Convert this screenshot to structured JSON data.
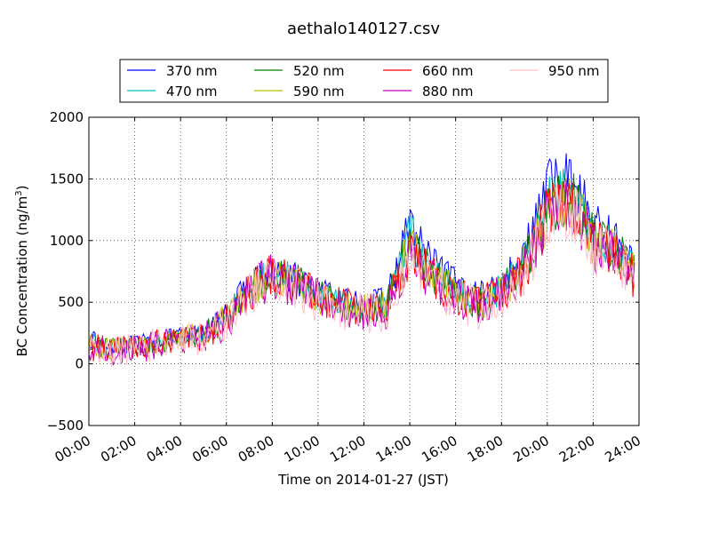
{
  "chart_data": {
    "type": "line",
    "title": "aethalo140127.csv",
    "xlabel": "Time on 2014-01-27 (JST)",
    "ylabel_main": "BC Concentration (ng/m",
    "ylabel_sup": "3",
    "ylabel_tail": ")",
    "xlim_hours": [
      0,
      24
    ],
    "ylim": [
      -500,
      2000
    ],
    "x_ticks": [
      {
        "hour": 0,
        "label": "00:00"
      },
      {
        "hour": 2,
        "label": "02:00"
      },
      {
        "hour": 4,
        "label": "04:00"
      },
      {
        "hour": 6,
        "label": "06:00"
      },
      {
        "hour": 8,
        "label": "08:00"
      },
      {
        "hour": 10,
        "label": "10:00"
      },
      {
        "hour": 12,
        "label": "12:00"
      },
      {
        "hour": 14,
        "label": "14:00"
      },
      {
        "hour": 16,
        "label": "16:00"
      },
      {
        "hour": 18,
        "label": "18:00"
      },
      {
        "hour": 20,
        "label": "20:00"
      },
      {
        "hour": 22,
        "label": "22:00"
      },
      {
        "hour": 24,
        "label": "24:00"
      }
    ],
    "y_ticks": [
      {
        "value": -500,
        "label": "−500"
      },
      {
        "value": 0,
        "label": "0"
      },
      {
        "value": 500,
        "label": "500"
      },
      {
        "value": 1000,
        "label": "1000"
      },
      {
        "value": 1500,
        "label": "1500"
      },
      {
        "value": 2000,
        "label": "2000"
      }
    ],
    "grid": true,
    "legend_location": "top",
    "x_hours": [
      0,
      1,
      2,
      3,
      4,
      5,
      6,
      7,
      8,
      9,
      10,
      11,
      12,
      13,
      14,
      15,
      16,
      17,
      18,
      19,
      20,
      21,
      22,
      23,
      23.8
    ],
    "series": [
      {
        "name": "370 nm",
        "color": "#0000ff",
        "values": [
          200,
          150,
          160,
          200,
          220,
          250,
          400,
          650,
          780,
          700,
          580,
          520,
          480,
          520,
          1150,
          800,
          650,
          550,
          650,
          900,
          1450,
          1550,
          1150,
          1000,
          800
        ]
      },
      {
        "name": "470 nm",
        "color": "#00bfbf",
        "values": [
          170,
          130,
          140,
          190,
          210,
          240,
          380,
          620,
          760,
          680,
          560,
          500,
          460,
          480,
          1050,
          720,
          600,
          500,
          600,
          820,
          1300,
          1400,
          1050,
          950,
          750
        ]
      },
      {
        "name": "520 nm",
        "color": "#008000",
        "values": [
          160,
          125,
          140,
          185,
          205,
          235,
          370,
          610,
          750,
          670,
          550,
          490,
          450,
          470,
          1000,
          700,
          580,
          490,
          590,
          800,
          1250,
          1380,
          1020,
          920,
          730
        ]
      },
      {
        "name": "590 nm",
        "color": "#bfbf00",
        "values": [
          150,
          120,
          135,
          180,
          200,
          230,
          360,
          600,
          740,
          660,
          540,
          480,
          440,
          460,
          950,
          690,
          570,
          480,
          580,
          780,
          1220,
          1350,
          1000,
          900,
          720
        ]
      },
      {
        "name": "660 nm",
        "color": "#ff0000",
        "values": [
          140,
          115,
          130,
          175,
          195,
          225,
          350,
          590,
          730,
          650,
          530,
          470,
          430,
          450,
          920,
          680,
          560,
          470,
          570,
          760,
          1200,
          1330,
          980,
          880,
          700
        ]
      },
      {
        "name": "880 nm",
        "color": "#bf00bf",
        "values": [
          120,
          100,
          120,
          170,
          190,
          220,
          340,
          580,
          720,
          640,
          520,
          460,
          420,
          430,
          900,
          660,
          540,
          460,
          560,
          740,
          1180,
          1300,
          960,
          860,
          680
        ]
      },
      {
        "name": "950 nm",
        "color": "#ffc0cb",
        "values": [
          110,
          90,
          115,
          165,
          185,
          215,
          330,
          570,
          710,
          630,
          510,
          450,
          410,
          420,
          880,
          650,
          530,
          450,
          550,
          730,
          1170,
          1290,
          950,
          850,
          670
        ]
      }
    ]
  }
}
